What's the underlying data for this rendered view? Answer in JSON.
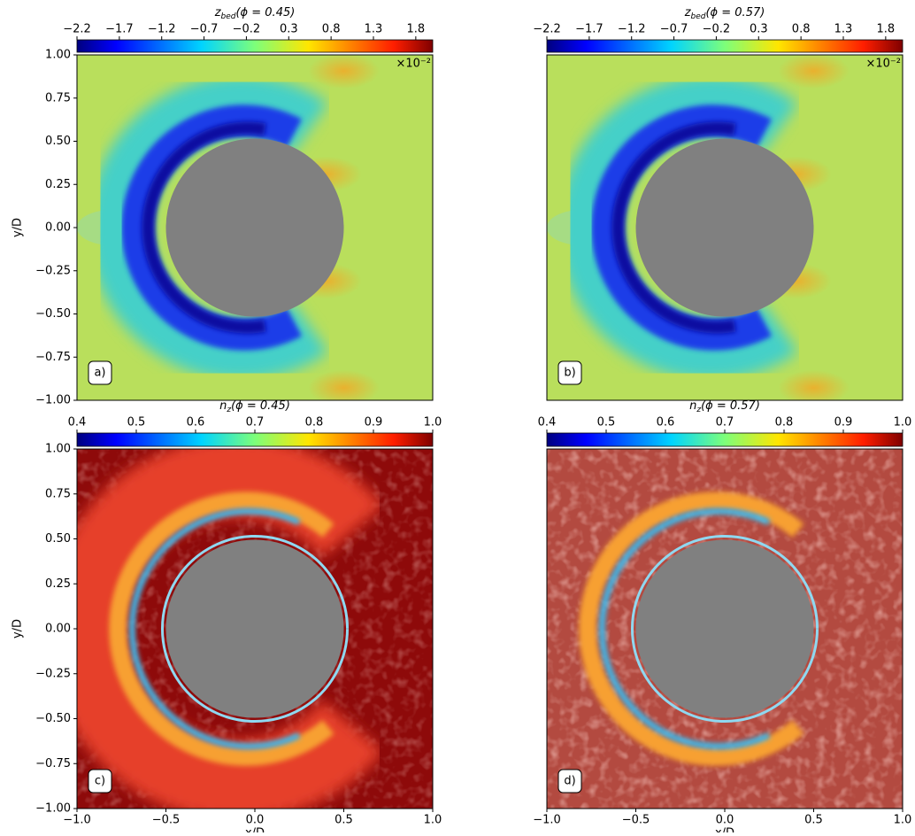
{
  "chart_data": [
    {
      "type": "contour",
      "panel_label": "a)",
      "colorbar_label": {
        "symbol": "z",
        "subscript": "bed",
        "condition": "(ϕ = 0.45)"
      },
      "colorbar_multiplier": "×10⁻²",
      "clim": [
        -2.2,
        2.0
      ],
      "cticks": [
        {
          "value": -2.2,
          "label": "−2.2"
        },
        {
          "value": -1.7,
          "label": "−1.7"
        },
        {
          "value": -1.2,
          "label": "−1.2"
        },
        {
          "value": -0.7,
          "label": "−0.7"
        },
        {
          "value": -0.2,
          "label": "−0.2"
        },
        0.3,
        0.8,
        1.3,
        1.8
      ],
      "xlim": [
        -1,
        1
      ],
      "ylim": [
        -1,
        1
      ],
      "ylabel": "y/D",
      "yticks": [
        {
          "value": 1,
          "label": "1.00"
        },
        0.75,
        {
          "value": 0.5,
          "label": "0.50"
        },
        0.25,
        {
          "value": 0,
          "label": "0.00"
        },
        {
          "value": -0.25,
          "label": "−0.25"
        },
        {
          "value": -0.5,
          "label": "−0.50"
        },
        {
          "value": -0.75,
          "label": "−0.75"
        },
        {
          "value": -1,
          "label": "−1.00"
        }
      ]
    },
    {
      "type": "contour",
      "panel_label": "b)",
      "colorbar_label": {
        "symbol": "z",
        "subscript": "bed",
        "condition": "(ϕ = 0.57)"
      },
      "colorbar_multiplier": "×10⁻²",
      "clim": [
        -2.2,
        2.0
      ],
      "cticks": [
        {
          "value": -2.2,
          "label": "−2.2"
        },
        {
          "value": -1.7,
          "label": "−1.7"
        },
        {
          "value": -1.2,
          "label": "−1.2"
        },
        {
          "value": -0.7,
          "label": "−0.7"
        },
        {
          "value": -0.2,
          "label": "−0.2"
        },
        0.3,
        0.8,
        1.3,
        1.8
      ],
      "xlim": [
        -1,
        1
      ],
      "ylim": [
        -1,
        1
      ]
    },
    {
      "type": "contour",
      "panel_label": "c)",
      "colorbar_label": {
        "symbol": "n",
        "subscript": "z",
        "condition": "(ϕ = 0.45)"
      },
      "clim": [
        0.4,
        1.0
      ],
      "cticks": [
        0.4,
        0.5,
        0.6,
        0.7,
        0.8,
        0.9,
        {
          "value": 1,
          "label": "1.0"
        }
      ],
      "xlim": [
        -1,
        1
      ],
      "ylim": [
        -1,
        1
      ],
      "xlabel": "x/D",
      "ylabel": "y/D",
      "xticks": [
        {
          "value": -1,
          "label": "−1.0"
        },
        {
          "value": -0.5,
          "label": "−0.5"
        },
        {
          "value": 0,
          "label": "0.0"
        },
        0.5,
        {
          "value": 1,
          "label": "1.0"
        }
      ],
      "yticks": [
        {
          "value": 1,
          "label": "1.00"
        },
        0.75,
        {
          "value": 0.5,
          "label": "0.50"
        },
        0.25,
        {
          "value": 0,
          "label": "0.00"
        },
        {
          "value": -0.25,
          "label": "−0.25"
        },
        {
          "value": -0.5,
          "label": "−0.50"
        },
        {
          "value": -0.75,
          "label": "−0.75"
        },
        {
          "value": -1,
          "label": "−1.00"
        }
      ]
    },
    {
      "type": "contour",
      "panel_label": "d)",
      "colorbar_label": {
        "symbol": "n",
        "subscript": "z",
        "condition": "(ϕ = 0.57)"
      },
      "clim": [
        0.4,
        1.0
      ],
      "cticks": [
        0.4,
        0.5,
        0.6,
        0.7,
        0.8,
        0.9,
        {
          "value": 1,
          "label": "1.0"
        }
      ],
      "xlim": [
        -1,
        1
      ],
      "ylim": [
        -1,
        1
      ],
      "xlabel": "x/D",
      "xticks": [
        {
          "value": -1,
          "label": "−1.0"
        },
        {
          "value": -0.5,
          "label": "−0.5"
        },
        {
          "value": 0,
          "label": "0.0"
        },
        0.5,
        {
          "value": 1,
          "label": "1.0"
        }
      ]
    }
  ]
}
